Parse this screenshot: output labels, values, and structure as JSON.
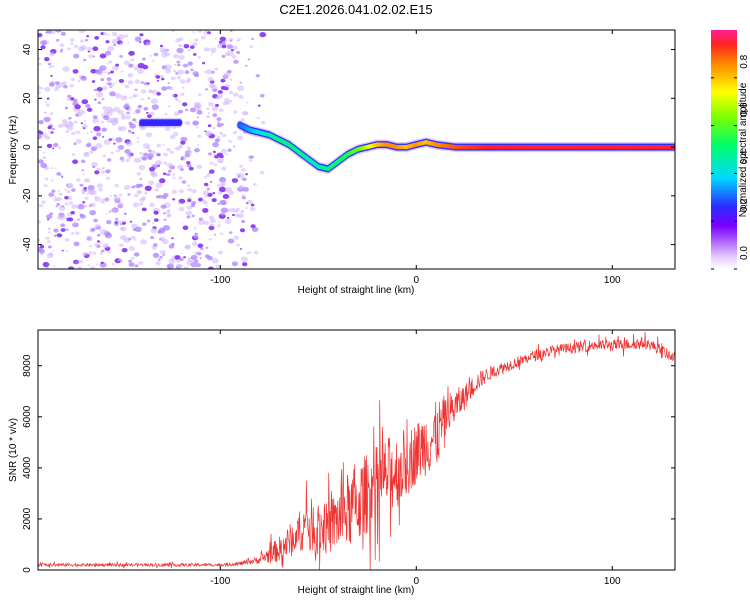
{
  "title": "C2E1.2026.041.02.02.E15",
  "colors": {
    "snr_line": "#ee3333",
    "speckle": "#8a3cf0",
    "ridge_core": "#e8243c",
    "axis": "#000000"
  },
  "chart_data": [
    {
      "type": "heatmap",
      "name": "spectrogram",
      "xlabel": "Height of straight line (km)",
      "ylabel": "Frequency (Hz)",
      "xlim": [
        -193,
        132
      ],
      "ylim": [
        -50,
        48
      ],
      "xticks": [
        -100,
        0,
        100
      ],
      "yticks": [
        40,
        20,
        0,
        -20,
        -40
      ],
      "xtick_labels": [
        "-100",
        "0",
        "100"
      ],
      "ytick_labels": [
        "40",
        "20",
        "0",
        "-20",
        "-40"
      ],
      "noise_region_x": [
        -193,
        -85
      ],
      "ridge": {
        "x": [
          -140,
          -135,
          -130,
          -125,
          -120,
          -90,
          -85,
          -80,
          -75,
          -70,
          -65,
          -60,
          -55,
          -50,
          -45,
          -40,
          -35,
          -30,
          -25,
          -20,
          -15,
          -10,
          -5,
          0,
          5,
          10,
          20,
          40,
          60,
          80,
          100,
          120,
          132
        ],
        "y": [
          10,
          10,
          10,
          10,
          10,
          9,
          7,
          6,
          5,
          3,
          1,
          -2,
          -5,
          -8,
          -9,
          -6,
          -3,
          -1,
          0,
          1,
          1,
          0,
          0,
          1,
          2,
          1,
          0,
          0,
          0,
          0,
          0,
          0,
          0
        ],
        "amplitude": [
          0.25,
          0.25,
          0.25,
          0.25,
          0.25,
          0.3,
          0.35,
          0.4,
          0.45,
          0.5,
          0.5,
          0.5,
          0.45,
          0.45,
          0.5,
          0.5,
          0.55,
          0.6,
          0.7,
          0.8,
          0.85,
          0.85,
          0.8,
          0.85,
          0.8,
          0.85,
          0.9,
          0.95,
          0.95,
          0.95,
          0.95,
          0.95,
          0.95
        ]
      },
      "colorbar": {
        "label": "Normalized spectral amplitude",
        "range": [
          0,
          1
        ],
        "ticks": [
          0.0,
          0.2,
          0.4,
          0.6,
          0.8
        ],
        "tick_labels": [
          "0.0",
          "0.2",
          "0.4",
          "0.6",
          "0.8"
        ]
      }
    },
    {
      "type": "line",
      "name": "snr",
      "xlabel": "Height of straight line (km)",
      "ylabel": "SNR (10 * v/v)",
      "xlim": [
        -193,
        132
      ],
      "ylim": [
        0,
        9400
      ],
      "xticks": [
        -100,
        0,
        100
      ],
      "yticks": [
        0,
        2000,
        4000,
        6000,
        8000
      ],
      "xtick_labels": [
        "-100",
        "0",
        "100"
      ],
      "ytick_labels": [
        "0",
        "2000",
        "4000",
        "6000",
        "8000"
      ],
      "envelope": {
        "x": [
          -193,
          -150,
          -100,
          -90,
          -80,
          -75,
          -70,
          -65,
          -60,
          -55,
          -50,
          -45,
          -40,
          -35,
          -30,
          -25,
          -20,
          -15,
          -10,
          -5,
          0,
          5,
          10,
          15,
          20,
          25,
          30,
          35,
          40,
          50,
          60,
          70,
          80,
          90,
          100,
          110,
          115,
          120,
          125,
          132
        ],
        "mean": [
          200,
          200,
          200,
          250,
          400,
          600,
          800,
          1100,
          1500,
          1800,
          1700,
          1600,
          2000,
          2300,
          2600,
          3000,
          3400,
          3700,
          3900,
          4200,
          4600,
          5000,
          5200,
          6000,
          6400,
          6800,
          7300,
          7600,
          7800,
          8100,
          8400,
          8600,
          8700,
          8800,
          8800,
          8850,
          8900,
          8800,
          8600,
          8300
        ],
        "spread": [
          60,
          60,
          60,
          80,
          150,
          350,
          500,
          650,
          800,
          1000,
          1100,
          1000,
          1300,
          1500,
          1600,
          1600,
          1500,
          1500,
          1500,
          1400,
          1200,
          1300,
          1400,
          900,
          700,
          500,
          400,
          300,
          250,
          220,
          220,
          220,
          220,
          220,
          220,
          220,
          220,
          220,
          220,
          220
        ]
      }
    }
  ]
}
